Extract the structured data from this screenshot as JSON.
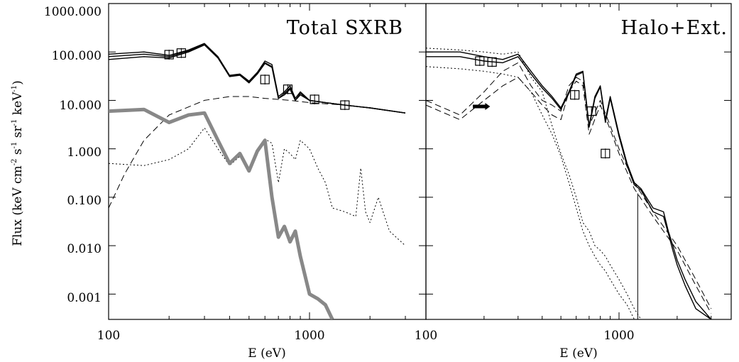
{
  "chart_data": [
    {
      "type": "line",
      "title": "Total SXRB",
      "xlabel": "E (eV)",
      "ylabel": "Flux (keV cm",
      "ylabel_sup1": "-2",
      "ylabel_mid1": " s",
      "ylabel_sup2": "-1",
      "ylabel_mid2": " sr",
      "ylabel_sup3": "-1",
      "ylabel_mid3": " keV",
      "ylabel_sup4": "-1",
      "ylabel_end": ")",
      "x_scale": "log",
      "y_scale": "log",
      "xlim": [
        100,
        3000
      ],
      "ylim": [
        0.0003,
        1000
      ],
      "x_tick_labels": [
        "100",
        "1000"
      ],
      "y_tick_labels": [
        "1000.000",
        "100.000",
        "10.000",
        "1.000",
        "0.100",
        "0.010",
        "0.001"
      ],
      "series": [
        {
          "style": "solid-black",
          "x": [
            100,
            150,
            200,
            250,
            300,
            350,
            400,
            450,
            500,
            550,
            600,
            650,
            700,
            750,
            800,
            850,
            900,
            1000,
            1200,
            1500,
            2000,
            3000
          ],
          "y": [
            90,
            100,
            85,
            110,
            150,
            80,
            33,
            35,
            25,
            38,
            65,
            55,
            12,
            15,
            20,
            11,
            15,
            10,
            9,
            8,
            7,
            5.5
          ]
        },
        {
          "style": "solid-black",
          "x": [
            100,
            150,
            200,
            250,
            300,
            350,
            400,
            450,
            500,
            550,
            600,
            650,
            700,
            750,
            800,
            850,
            900,
            1000,
            1200,
            1500,
            2000,
            3000
          ],
          "y": [
            80,
            90,
            80,
            105,
            145,
            78,
            32,
            34,
            24,
            36,
            60,
            50,
            11,
            14,
            18,
            10,
            14,
            10,
            9,
            8,
            7,
            5.5
          ]
        },
        {
          "style": "solid-black",
          "x": [
            100,
            150,
            200,
            250,
            300,
            350,
            400,
            450,
            500,
            550,
            600,
            650,
            700,
            750,
            800,
            850,
            900,
            1000,
            1200,
            1500,
            2000,
            3000
          ],
          "y": [
            70,
            80,
            75,
            100,
            140,
            75,
            31,
            33,
            23,
            35,
            58,
            48,
            11,
            13,
            17,
            10,
            13,
            10,
            9,
            8,
            7,
            5.5
          ]
        },
        {
          "style": "dashed",
          "x": [
            100,
            120,
            150,
            200,
            300,
            400,
            500,
            600,
            800,
            1000,
            1500,
            2000,
            3000
          ],
          "y": [
            0.06,
            0.3,
            1.5,
            5,
            10,
            12,
            12,
            11,
            10,
            9,
            8,
            7,
            5.5
          ]
        },
        {
          "style": "dotted",
          "x": [
            100,
            150,
            200,
            250,
            300,
            350,
            400,
            450,
            500,
            550,
            600,
            650,
            700,
            750,
            800,
            850,
            900,
            1000,
            1100,
            1200,
            1300,
            1500,
            1700,
            1800,
            1900,
            2000,
            2200,
            2500,
            3000
          ],
          "y": [
            0.5,
            0.45,
            0.6,
            1.0,
            2.7,
            1.0,
            0.45,
            0.7,
            0.4,
            1.0,
            1.6,
            1.3,
            0.2,
            1.0,
            0.8,
            0.6,
            1.5,
            1.0,
            0.4,
            0.2,
            0.06,
            0.05,
            0.04,
            0.4,
            0.05,
            0.03,
            0.1,
            0.02,
            0.01
          ]
        },
        {
          "style": "gray-thick",
          "x": [
            100,
            150,
            200,
            250,
            300,
            350,
            400,
            450,
            500,
            550,
            600,
            650,
            700,
            750,
            800,
            850,
            900,
            1000,
            1100,
            1200,
            1300
          ],
          "y": [
            6,
            6.5,
            3.5,
            5,
            5.5,
            1.5,
            0.5,
            0.8,
            0.35,
            0.9,
            1.5,
            0.1,
            0.015,
            0.025,
            0.012,
            0.02,
            0.006,
            0.001,
            0.0008,
            0.0006,
            0.0003
          ]
        }
      ],
      "markers": [
        {
          "x": 200,
          "y": 88
        },
        {
          "x": 230,
          "y": 95
        },
        {
          "x": 600,
          "y": 27
        },
        {
          "x": 780,
          "y": 17
        },
        {
          "x": 1060,
          "y": 10.5
        },
        {
          "x": 1500,
          "y": 8
        }
      ]
    },
    {
      "type": "line",
      "title": "Halo+Ext.",
      "xlabel": "E (eV)",
      "x_scale": "log",
      "y_scale": "log",
      "xlim": [
        100,
        3000
      ],
      "ylim": [
        0.0003,
        1000
      ],
      "x_tick_labels": [
        "100",
        "1000"
      ],
      "series": [
        {
          "style": "solid-black",
          "x": [
            100,
            150,
            200,
            250,
            300,
            350,
            400,
            450,
            500,
            550,
            600,
            650,
            700,
            750,
            800,
            850,
            900,
            1000,
            1100,
            1200,
            1300,
            1500,
            1700,
            1800,
            1900,
            2000,
            2200,
            2500,
            3000
          ],
          "y": [
            100,
            100,
            80,
            70,
            90,
            40,
            20,
            12,
            7,
            15,
            35,
            40,
            3,
            12,
            20,
            4,
            12,
            2,
            0.5,
            0.2,
            0.15,
            0.06,
            0.05,
            0.02,
            0.01,
            0.005,
            0.002,
            0.0007,
            0.0003
          ]
        },
        {
          "style": "solid-black",
          "x": [
            100,
            150,
            200,
            250,
            300,
            350,
            400,
            450,
            500,
            550,
            600,
            650,
            700,
            750,
            800,
            850,
            900,
            1000,
            1100,
            1200,
            1300,
            1500,
            1700,
            1800,
            1900,
            2000,
            2200,
            2500,
            3000
          ],
          "y": [
            80,
            80,
            65,
            60,
            80,
            35,
            18,
            11,
            6.5,
            14,
            33,
            38,
            2.8,
            11,
            19,
            3.5,
            11,
            1.8,
            0.45,
            0.18,
            0.14,
            0.05,
            0.04,
            0.018,
            0.008,
            0.004,
            0.0015,
            0.0005,
            0.0003
          ]
        },
        {
          "style": "dotted",
          "x": [
            100,
            150,
            200,
            250,
            300,
            350,
            400,
            450,
            500,
            550,
            600,
            650,
            700,
            750,
            800,
            850,
            900,
            1000,
            1100,
            1200,
            1300
          ],
          "y": [
            120,
            110,
            100,
            90,
            100,
            30,
            15,
            3,
            0.8,
            0.3,
            0.1,
            0.03,
            0.02,
            0.01,
            0.008,
            0.006,
            0.004,
            0.002,
            0.001,
            0.0005,
            0.0003
          ]
        },
        {
          "style": "dotted",
          "x": [
            100,
            150,
            200,
            250,
            300,
            350,
            400,
            450,
            500,
            550,
            600,
            650,
            700,
            750,
            800,
            850,
            900,
            1000,
            1100,
            1200
          ],
          "y": [
            50,
            45,
            40,
            35,
            30,
            15,
            5,
            2,
            0.7,
            0.2,
            0.06,
            0.02,
            0.01,
            0.006,
            0.004,
            0.003,
            0.002,
            0.001,
            0.0006,
            0.0003
          ]
        },
        {
          "style": "dashed",
          "x": [
            100,
            150,
            200,
            250,
            300,
            350,
            400,
            450,
            500,
            550,
            600,
            650,
            700,
            800,
            900,
            1000,
            1200,
            1500,
            2000,
            2500,
            3000
          ],
          "y": [
            10,
            5,
            15,
            40,
            60,
            20,
            10,
            8,
            6,
            20,
            30,
            25,
            3,
            10,
            3,
            1,
            0.2,
            0.05,
            0.01,
            0.002,
            0.0005
          ]
        },
        {
          "style": "dashed",
          "x": [
            100,
            150,
            200,
            250,
            300,
            350,
            400,
            450,
            500,
            550,
            600,
            650,
            700,
            800,
            900,
            1000,
            1200,
            1500,
            2000,
            2500,
            3000
          ],
          "y": [
            8,
            4,
            10,
            20,
            30,
            15,
            8,
            5,
            4,
            15,
            25,
            20,
            2,
            8,
            2.5,
            0.8,
            0.15,
            0.04,
            0.008,
            0.0015,
            0.0004
          ]
        }
      ],
      "markers": [
        {
          "x": 190,
          "y": 65
        },
        {
          "x": 220,
          "y": 62
        },
        {
          "x": 590,
          "y": 13
        },
        {
          "x": 720,
          "y": 6
        },
        {
          "x": 850,
          "y": 0.8
        }
      ],
      "arrow": {
        "x1": 175,
        "x2": 215,
        "y": 7.5
      },
      "vline": {
        "x": 1250,
        "y1": 0.0003,
        "y2": 0.12
      }
    }
  ]
}
